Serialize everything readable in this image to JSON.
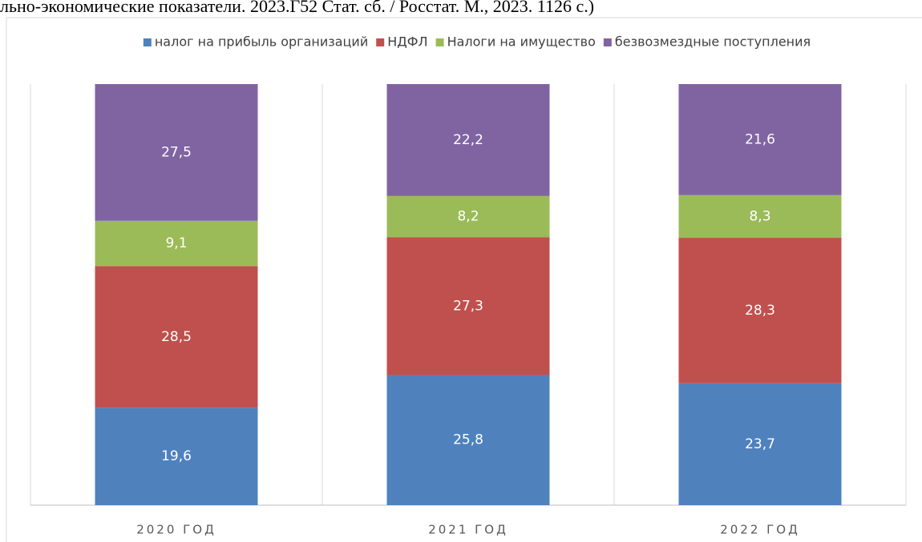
{
  "caption": "льно-экономические показатели. 2023.Г52 Стат. сб. / Росстат. М., 2023. 1126 с.)",
  "chart_data": {
    "type": "bar",
    "stacking": "percent",
    "categories": [
      "2020 ГОД",
      "2021 ГОД",
      "2022 ГОД"
    ],
    "series": [
      {
        "name": "налог на прибыль организаций",
        "color": "#4f81bd",
        "values": [
          19.6,
          25.8,
          23.7
        ],
        "value_labels": [
          "19,6",
          "25,8",
          "23,7"
        ]
      },
      {
        "name": "НДФЛ",
        "color": "#c0504d",
        "values": [
          28.5,
          27.3,
          28.3
        ],
        "value_labels": [
          "28,5",
          "27,3",
          "28,3"
        ]
      },
      {
        "name": "Налоги на имущество",
        "color": "#9bbb59",
        "values": [
          9.1,
          8.2,
          8.3
        ],
        "value_labels": [
          "9,1",
          "8,2",
          "8,3"
        ]
      },
      {
        "name": "безвозмездные поступления",
        "color": "#8064a2",
        "values": [
          27.5,
          22.2,
          21.6
        ],
        "value_labels": [
          "27,5",
          "22,2",
          "21,6"
        ]
      }
    ],
    "legend": "top"
  }
}
